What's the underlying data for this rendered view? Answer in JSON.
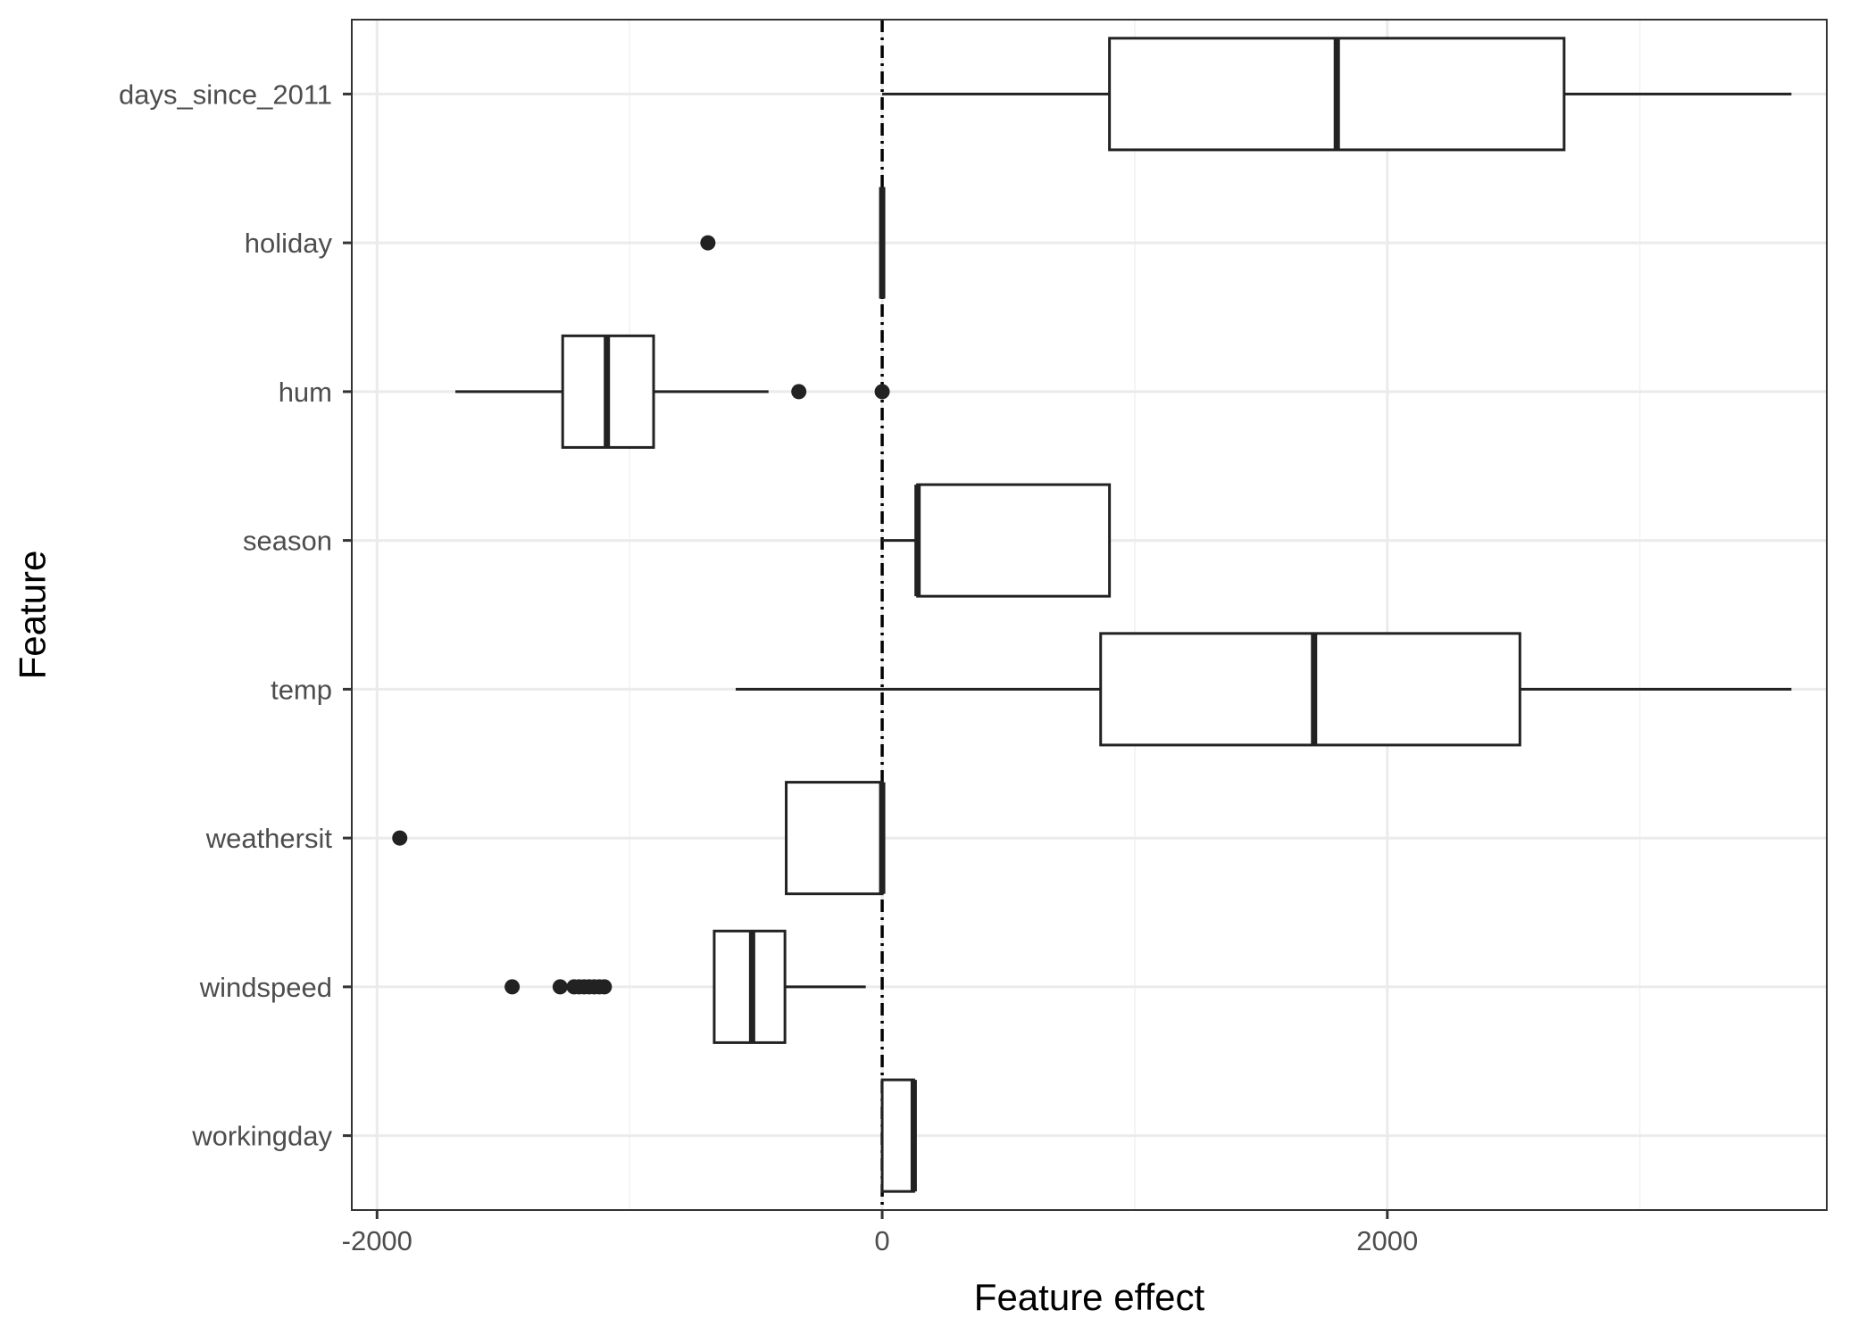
{
  "chart_data": {
    "type": "boxplot",
    "orientation": "horizontal",
    "xlabel": "Feature effect",
    "ylabel": "Feature",
    "xlim": [
      -2100,
      3740
    ],
    "x_ticks": [
      -2000,
      0,
      2000
    ],
    "x_tick_labels": [
      "-2000",
      "0",
      "2000"
    ],
    "reference_line": {
      "x": 0,
      "style": "dotdash"
    },
    "grid": true,
    "categories": [
      "workingday",
      "windspeed",
      "weathersit",
      "temp",
      "season",
      "hum",
      "holiday",
      "days_since_2011"
    ],
    "boxes": [
      {
        "feature": "workingday",
        "whisker_low": 0,
        "q1": 0,
        "median": 125,
        "q3": 125,
        "whisker_high": 125,
        "outliers": []
      },
      {
        "feature": "windspeed",
        "whisker_low": -665,
        "q1": -665,
        "median": -515,
        "q3": -385,
        "whisker_high": -65,
        "outliers": [
          -1465,
          -1275,
          -1220,
          -1200,
          -1180,
          -1160,
          -1140,
          -1120,
          -1100
        ]
      },
      {
        "feature": "weathersit",
        "whisker_low": -380,
        "q1": -380,
        "median": 0,
        "q3": 0,
        "whisker_high": 0,
        "outliers": [
          -1910
        ]
      },
      {
        "feature": "temp",
        "whisker_low": -580,
        "q1": 865,
        "median": 1710,
        "q3": 2525,
        "whisker_high": 3600,
        "outliers": []
      },
      {
        "feature": "season",
        "whisker_low": 0,
        "q1": 140,
        "median": 140,
        "q3": 900,
        "whisker_high": 900,
        "outliers": []
      },
      {
        "feature": "hum",
        "whisker_low": -1690,
        "q1": -1265,
        "median": -1090,
        "q3": -905,
        "whisker_high": -450,
        "outliers": [
          -330,
          0
        ]
      },
      {
        "feature": "holiday",
        "whisker_low": 0,
        "q1": 0,
        "median": 0,
        "q3": 0,
        "whisker_high": 0,
        "outliers": [
          -690
        ]
      },
      {
        "feature": "days_since_2011",
        "whisker_low": 0,
        "q1": 900,
        "median": 1800,
        "q3": 2700,
        "whisker_high": 3600,
        "outliers": []
      }
    ],
    "colors": {
      "box_fill": "#ffffff",
      "box_line": "#222222",
      "grid": "#ebebeb",
      "text": "#4d4d4d"
    }
  }
}
